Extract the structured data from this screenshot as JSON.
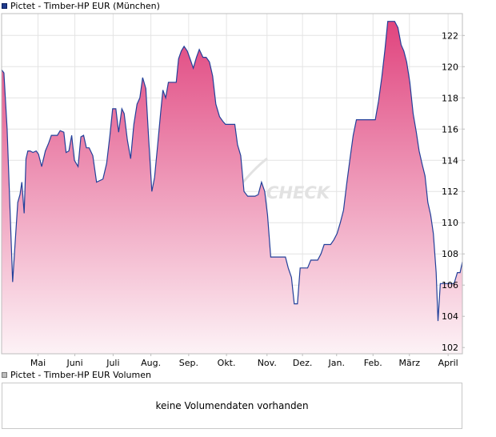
{
  "legend": {
    "price_label": "Pictet - Timber-HP EUR (München)",
    "volume_label": "Pictet - Timber-HP EUR Volumen"
  },
  "watermark": "CHECK",
  "volume_panel": {
    "message": "keine Volumendaten vorhanden"
  },
  "colors": {
    "line": "#23409a",
    "fill_top": "#e0447e",
    "fill_bottom": "#fdf2f6",
    "grid": "#e4e4e4",
    "axis": "#bdbdbd"
  },
  "chart_data": {
    "type": "area",
    "title": "Pictet - Timber-HP EUR (München)",
    "xlabel": "",
    "ylabel": "",
    "ylim": [
      101.6,
      123.4
    ],
    "xlim": [
      0,
      100
    ],
    "y_ticks": [
      102,
      104,
      106,
      108,
      110,
      112,
      114,
      116,
      118,
      120,
      122
    ],
    "x_ticks": [
      {
        "label": "Mai",
        "x": 7.9
      },
      {
        "label": "Juni",
        "x": 15.9
      },
      {
        "label": "Juli",
        "x": 24.2
      },
      {
        "label": "Aug.",
        "x": 32.4
      },
      {
        "label": "Sep.",
        "x": 40.6
      },
      {
        "label": "Okt.",
        "x": 48.8
      },
      {
        "label": "Nov.",
        "x": 57.6
      },
      {
        "label": "Dez.",
        "x": 65.3
      },
      {
        "label": "Jan.",
        "x": 72.7
      },
      {
        "label": "Feb.",
        "x": 80.6
      },
      {
        "label": "März",
        "x": 88.5
      },
      {
        "label": "April",
        "x": 96.9
      }
    ],
    "grid": true,
    "legend_position": "top-left",
    "series": [
      {
        "name": "Pictet - Timber-HP EUR (München)",
        "points": [
          [
            0,
            119.8
          ],
          [
            0.5,
            119.6
          ],
          [
            1.2,
            116.0
          ],
          [
            2.4,
            106.2
          ],
          [
            3.0,
            109.0
          ],
          [
            3.5,
            111.3
          ],
          [
            4.0,
            111.8
          ],
          [
            4.4,
            112.6
          ],
          [
            4.9,
            110.6
          ],
          [
            5.3,
            114.1
          ],
          [
            5.7,
            114.6
          ],
          [
            6.2,
            114.6
          ],
          [
            6.8,
            114.5
          ],
          [
            7.5,
            114.6
          ],
          [
            8.0,
            114.4
          ],
          [
            8.7,
            113.6
          ],
          [
            9.5,
            114.6
          ],
          [
            10.2,
            115.1
          ],
          [
            10.8,
            115.6
          ],
          [
            12.1,
            115.6
          ],
          [
            12.7,
            115.9
          ],
          [
            13.5,
            115.8
          ],
          [
            14.0,
            114.5
          ],
          [
            14.6,
            114.6
          ],
          [
            15.2,
            115.6
          ],
          [
            15.8,
            114.0
          ],
          [
            16.6,
            113.6
          ],
          [
            17.2,
            115.5
          ],
          [
            17.8,
            115.6
          ],
          [
            18.4,
            114.8
          ],
          [
            19.0,
            114.8
          ],
          [
            19.8,
            114.3
          ],
          [
            20.6,
            112.6
          ],
          [
            21.3,
            112.7
          ],
          [
            22.0,
            112.8
          ],
          [
            22.8,
            113.8
          ],
          [
            23.5,
            115.6
          ],
          [
            24.1,
            117.3
          ],
          [
            24.8,
            117.3
          ],
          [
            25.4,
            115.8
          ],
          [
            26.1,
            117.3
          ],
          [
            26.6,
            117.0
          ],
          [
            27.3,
            115.3
          ],
          [
            28.0,
            114.1
          ],
          [
            28.7,
            116.3
          ],
          [
            29.4,
            117.6
          ],
          [
            30.0,
            118.0
          ],
          [
            30.6,
            119.3
          ],
          [
            31.3,
            118.6
          ],
          [
            31.9,
            115.5
          ],
          [
            32.6,
            112.0
          ],
          [
            33.2,
            112.9
          ],
          [
            33.9,
            115.1
          ],
          [
            34.5,
            117.0
          ],
          [
            35.0,
            118.5
          ],
          [
            35.6,
            118.0
          ],
          [
            36.2,
            119.0
          ],
          [
            37.0,
            119.0
          ],
          [
            37.9,
            119.0
          ],
          [
            38.4,
            120.5
          ],
          [
            39.0,
            121.0
          ],
          [
            39.6,
            121.3
          ],
          [
            40.3,
            121.0
          ],
          [
            40.9,
            120.5
          ],
          [
            41.6,
            119.9
          ],
          [
            42.3,
            120.6
          ],
          [
            42.9,
            121.1
          ],
          [
            43.7,
            120.6
          ],
          [
            44.4,
            120.6
          ],
          [
            45.1,
            120.3
          ],
          [
            45.8,
            119.4
          ],
          [
            46.5,
            117.6
          ],
          [
            47.3,
            116.8
          ],
          [
            48.0,
            116.5
          ],
          [
            48.6,
            116.3
          ],
          [
            49.3,
            116.3
          ],
          [
            50.0,
            116.3
          ],
          [
            50.6,
            116.3
          ],
          [
            51.2,
            115.0
          ],
          [
            51.9,
            114.3
          ],
          [
            52.6,
            112.0
          ],
          [
            53.4,
            111.7
          ],
          [
            54.2,
            111.7
          ],
          [
            55.0,
            111.7
          ],
          [
            55.7,
            111.8
          ],
          [
            56.4,
            112.6
          ],
          [
            57.1,
            112.0
          ],
          [
            57.7,
            110.5
          ],
          [
            58.4,
            107.8
          ],
          [
            59.1,
            107.8
          ],
          [
            59.8,
            107.8
          ],
          [
            60.7,
            107.8
          ],
          [
            61.6,
            107.8
          ],
          [
            62.2,
            107.1
          ],
          [
            62.9,
            106.5
          ],
          [
            63.5,
            104.8
          ],
          [
            64.2,
            104.8
          ],
          [
            64.8,
            107.1
          ],
          [
            65.6,
            107.1
          ],
          [
            66.4,
            107.1
          ],
          [
            67.1,
            107.6
          ],
          [
            67.8,
            107.6
          ],
          [
            68.6,
            107.6
          ],
          [
            69.3,
            108.0
          ],
          [
            70.0,
            108.6
          ],
          [
            70.7,
            108.6
          ],
          [
            71.4,
            108.6
          ],
          [
            72.1,
            108.9
          ],
          [
            72.8,
            109.3
          ],
          [
            73.5,
            110.0
          ],
          [
            74.2,
            110.8
          ],
          [
            74.9,
            112.5
          ],
          [
            75.6,
            114.1
          ],
          [
            76.3,
            115.6
          ],
          [
            77.0,
            116.6
          ],
          [
            77.8,
            116.6
          ],
          [
            78.7,
            116.6
          ],
          [
            79.5,
            116.6
          ],
          [
            80.3,
            116.6
          ],
          [
            81.1,
            116.6
          ],
          [
            81.8,
            117.8
          ],
          [
            82.5,
            119.3
          ],
          [
            83.2,
            121.1
          ],
          [
            83.8,
            122.9
          ],
          [
            84.5,
            122.9
          ],
          [
            85.3,
            122.9
          ],
          [
            86.0,
            122.5
          ],
          [
            86.7,
            121.4
          ],
          [
            87.3,
            121.0
          ],
          [
            87.9,
            120.3
          ],
          [
            88.6,
            119.0
          ],
          [
            89.3,
            117.0
          ],
          [
            90.0,
            115.8
          ],
          [
            90.6,
            114.6
          ],
          [
            91.3,
            113.7
          ],
          [
            91.9,
            113.0
          ],
          [
            92.5,
            111.3
          ],
          [
            93.1,
            110.5
          ],
          [
            93.7,
            109.3
          ],
          [
            94.3,
            106.8
          ],
          [
            94.7,
            103.7
          ],
          [
            95.2,
            106.1
          ],
          [
            96.2,
            106.1
          ],
          [
            97.2,
            106.1
          ],
          [
            98.2,
            106.1
          ],
          [
            98.9,
            106.8
          ],
          [
            99.5,
            106.8
          ],
          [
            100,
            107.5
          ]
        ]
      }
    ]
  }
}
